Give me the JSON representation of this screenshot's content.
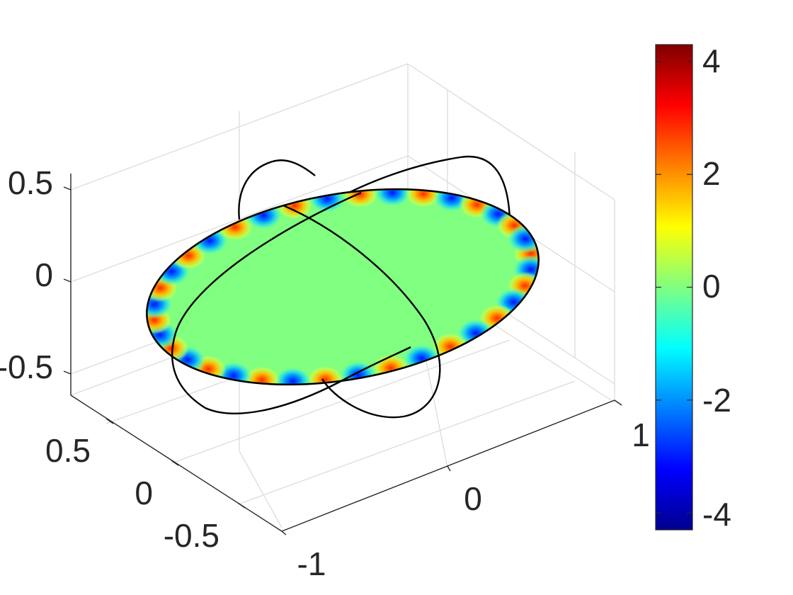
{
  "chart_data": {
    "type": "surface3d",
    "title": "",
    "colormap": "jet",
    "colormap_stops": [
      "#00008f",
      "#0000ff",
      "#00ffff",
      "#80ff80",
      "#ffff00",
      "#ff0000",
      "#800000"
    ],
    "grid": true,
    "axes": {
      "x": {
        "label": "",
        "ticks": [
          -1,
          0,
          1
        ],
        "tick_labels": [
          "-1",
          "0",
          "1"
        ],
        "lim": [
          -1,
          1
        ]
      },
      "y": {
        "label": "",
        "ticks": [
          -0.5,
          0,
          0.5
        ],
        "tick_labels": [
          "-0.5",
          "0",
          "0.5"
        ],
        "lim": [
          -0.8,
          0.8
        ]
      },
      "z": {
        "label": "",
        "ticks": [
          -0.5,
          0,
          0.5
        ],
        "tick_labels": [
          "-0.5",
          "0",
          "0.5"
        ],
        "lim": [
          -0.6,
          0.6
        ]
      }
    },
    "colorbar": {
      "position": "right",
      "lim": [
        -4.3,
        4.3
      ],
      "ticks": [
        -4,
        -2,
        0,
        2,
        4
      ],
      "tick_labels": [
        "-4",
        "-2",
        "0",
        "2",
        "4"
      ]
    },
    "surface": {
      "shape": "disk",
      "center_value": 0,
      "rim_oscillations": 18,
      "rim_amplitude": 4.3
    },
    "curves": [
      {
        "name": "",
        "color": "#000000",
        "plane": "xz"
      },
      {
        "name": "",
        "color": "#000000",
        "plane": "yz"
      }
    ]
  }
}
